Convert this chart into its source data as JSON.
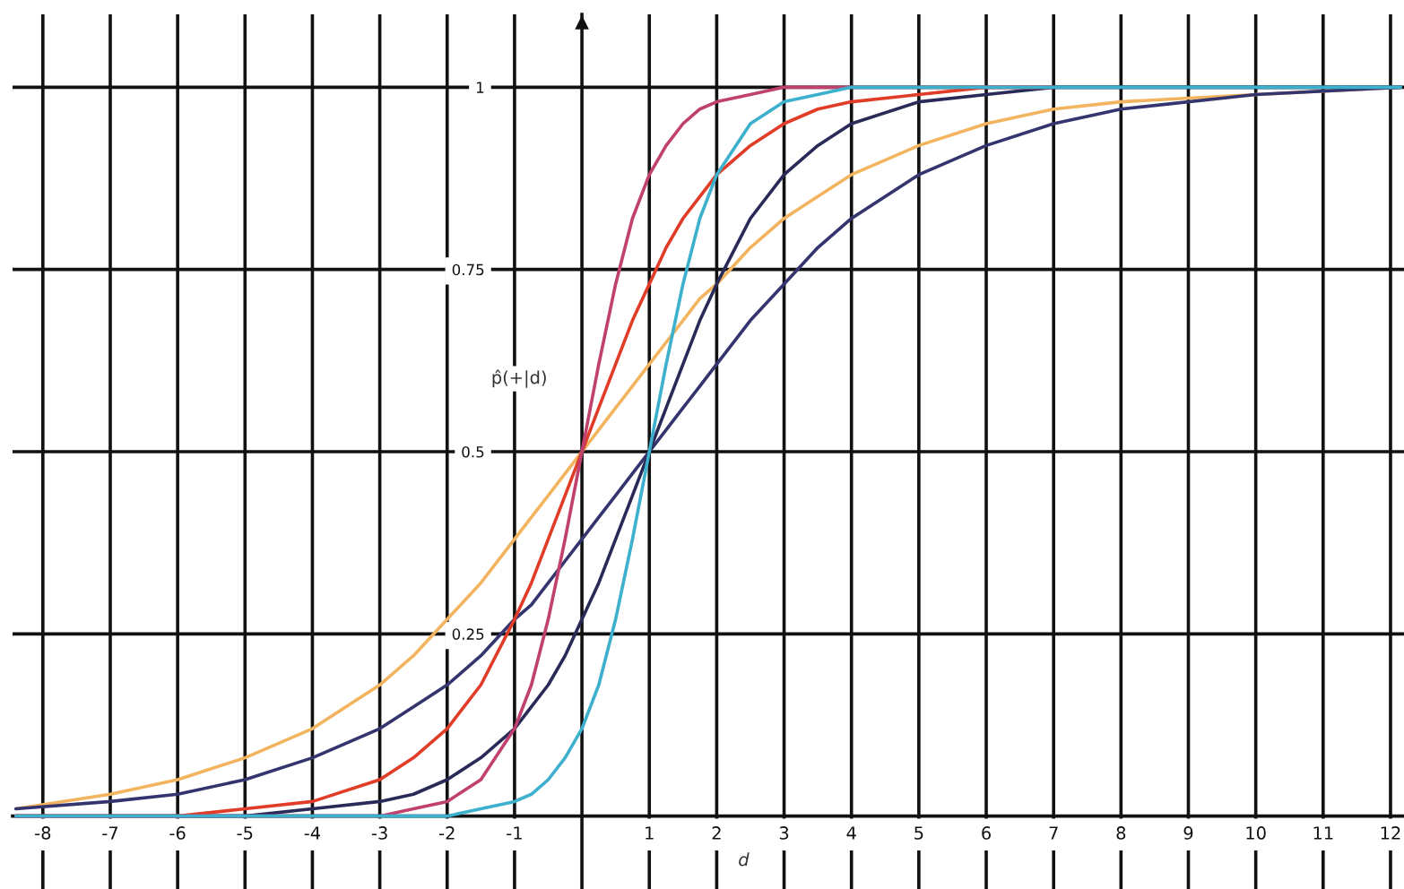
{
  "chart_data": {
    "type": "line",
    "xlabel": "d",
    "ylabel": "p̂(+|d)",
    "x": [
      -8.4,
      -7,
      -6,
      -5,
      -4,
      -3,
      -2.5,
      -2,
      -1.5,
      -1,
      -0.75,
      -0.5,
      -0.25,
      0,
      0.25,
      0.5,
      0.75,
      1,
      1.25,
      1.5,
      1.75,
      2,
      2.5,
      3,
      3.5,
      4,
      5,
      6,
      7,
      8,
      10,
      12.15
    ],
    "xlim": [
      -8.45,
      12.2
    ],
    "ylim": [
      -0.1,
      1.1
    ],
    "xticks": [
      -8,
      -7,
      -6,
      -5,
      -4,
      -3,
      -2,
      -1,
      1,
      2,
      3,
      4,
      5,
      6,
      7,
      8,
      9,
      10,
      11,
      12
    ],
    "yticks": [
      0.25,
      0.5,
      0.75,
      1
    ],
    "grid": true,
    "line_style": "solid",
    "series": [
      {
        "color": "#f2b45e",
        "values": [
          0.01,
          0.03,
          0.05,
          0.08,
          0.12,
          0.18,
          0.22,
          0.27,
          0.32,
          0.38,
          0.41,
          0.44,
          0.47,
          0.5,
          0.53,
          0.56,
          0.59,
          0.62,
          0.65,
          0.68,
          0.71,
          0.73,
          0.78,
          0.82,
          0.85,
          0.88,
          0.92,
          0.95,
          0.97,
          0.98,
          0.99,
          1.0
        ]
      },
      {
        "color": "#34346e",
        "values": [
          0.01,
          0.02,
          0.03,
          0.05,
          0.08,
          0.12,
          0.15,
          0.18,
          0.22,
          0.27,
          0.29,
          0.32,
          0.35,
          0.38,
          0.41,
          0.44,
          0.47,
          0.5,
          0.53,
          0.56,
          0.59,
          0.62,
          0.68,
          0.73,
          0.78,
          0.82,
          0.88,
          0.92,
          0.95,
          0.97,
          0.99,
          1.0
        ]
      },
      {
        "color": "#2a2a58",
        "values": [
          0.0,
          0.0,
          0.0,
          0.0,
          0.01,
          0.02,
          0.03,
          0.05,
          0.08,
          0.12,
          0.15,
          0.18,
          0.22,
          0.27,
          0.32,
          0.38,
          0.44,
          0.5,
          0.56,
          0.62,
          0.68,
          0.73,
          0.82,
          0.88,
          0.92,
          0.95,
          0.98,
          0.99,
          1.0,
          1.0,
          1.0,
          1.0
        ]
      },
      {
        "color": "#e03c28",
        "values": [
          0.0,
          0.0,
          0.0,
          0.01,
          0.02,
          0.05,
          0.08,
          0.12,
          0.18,
          0.27,
          0.32,
          0.38,
          0.44,
          0.5,
          0.56,
          0.62,
          0.68,
          0.73,
          0.78,
          0.82,
          0.85,
          0.88,
          0.92,
          0.95,
          0.97,
          0.98,
          0.99,
          1.0,
          1.0,
          null,
          null,
          null
        ]
      },
      {
        "color": "#c0406e",
        "values": [
          0.0,
          0.0,
          0.0,
          0.0,
          0.0,
          0.0,
          0.01,
          0.02,
          0.05,
          0.12,
          0.18,
          0.27,
          0.38,
          0.5,
          0.62,
          0.73,
          0.82,
          0.88,
          0.92,
          0.95,
          0.97,
          0.98,
          0.99,
          1.0,
          1.0,
          1.0,
          1.0,
          1.0,
          1.0,
          null,
          null,
          null
        ]
      },
      {
        "color": "#3cb0cc",
        "values": [
          0.0,
          0.0,
          0.0,
          0.0,
          0.0,
          0.0,
          0.0,
          0.0,
          0.01,
          0.02,
          0.03,
          0.05,
          0.08,
          0.12,
          0.18,
          0.27,
          0.38,
          0.5,
          0.62,
          0.73,
          0.82,
          0.88,
          0.95,
          0.98,
          0.99,
          1.0,
          1.0,
          1.0,
          1.0,
          1.0,
          1.0,
          1.0
        ]
      }
    ]
  }
}
